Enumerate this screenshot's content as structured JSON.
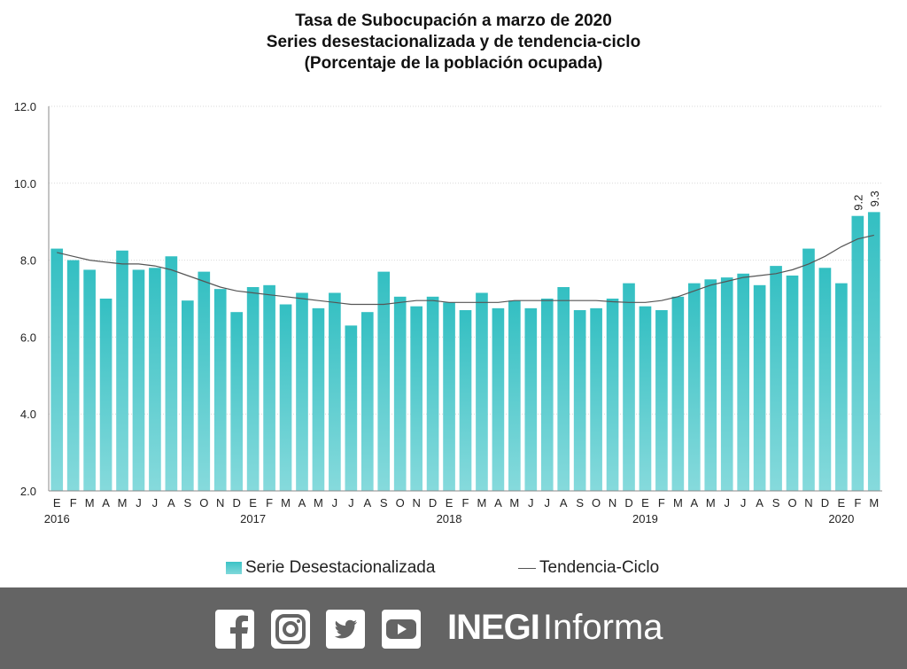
{
  "chart_data": {
    "type": "bar",
    "title": "Tasa de Subocupación a marzo de 2020",
    "subtitle": "Series desestacionalizada y de tendencia-ciclo",
    "subtitle2": "(Porcentaje de la población ocupada)",
    "ylim": [
      2.0,
      12.0
    ],
    "yticks": [
      "2.0",
      "4.0",
      "6.0",
      "8.0",
      "10.0",
      "12.0"
    ],
    "grid": true,
    "legend_placement": "bottom",
    "bar_color": "#3cc3c6",
    "line_color": "#555555",
    "categories": [
      "E",
      "F",
      "M",
      "A",
      "M",
      "J",
      "J",
      "A",
      "S",
      "O",
      "N",
      "D",
      "E",
      "F",
      "M",
      "A",
      "M",
      "J",
      "J",
      "A",
      "S",
      "O",
      "N",
      "D",
      "E",
      "F",
      "M",
      "A",
      "M",
      "J",
      "J",
      "A",
      "S",
      "O",
      "N",
      "D",
      "E",
      "F",
      "M",
      "A",
      "M",
      "J",
      "J",
      "A",
      "S",
      "O",
      "N",
      "D",
      "E",
      "F",
      "M"
    ],
    "years": [
      {
        "label": "2016",
        "index": 0
      },
      {
        "label": "2017",
        "index": 12
      },
      {
        "label": "2018",
        "index": 24
      },
      {
        "label": "2019",
        "index": 36
      },
      {
        "label": "2020",
        "index": 48
      }
    ],
    "series": [
      {
        "name": "Serie Desestacionalizada",
        "type": "bar",
        "values": [
          8.3,
          8.0,
          7.75,
          7.0,
          8.25,
          7.75,
          7.8,
          8.1,
          6.95,
          7.7,
          7.25,
          6.65,
          7.3,
          7.35,
          6.85,
          7.15,
          6.75,
          7.15,
          6.3,
          6.65,
          7.7,
          7.05,
          6.8,
          7.05,
          6.9,
          6.7,
          7.15,
          6.75,
          6.95,
          6.75,
          7.0,
          7.3,
          6.7,
          6.75,
          7.0,
          7.4,
          6.8,
          6.7,
          7.05,
          7.4,
          7.5,
          7.55,
          7.65,
          7.35,
          7.85,
          7.6,
          8.3,
          7.8,
          7.4,
          9.15,
          9.25
        ]
      },
      {
        "name": "Tendencia-Ciclo",
        "type": "line",
        "values": [
          8.2,
          8.1,
          8.0,
          7.95,
          7.9,
          7.9,
          7.85,
          7.75,
          7.6,
          7.45,
          7.3,
          7.2,
          7.15,
          7.1,
          7.05,
          7.0,
          6.95,
          6.9,
          6.85,
          6.85,
          6.85,
          6.9,
          6.95,
          6.95,
          6.9,
          6.9,
          6.9,
          6.9,
          6.95,
          6.95,
          6.95,
          6.95,
          6.95,
          6.95,
          6.92,
          6.9,
          6.9,
          6.95,
          7.05,
          7.2,
          7.35,
          7.45,
          7.55,
          7.6,
          7.65,
          7.75,
          7.9,
          8.1,
          8.35,
          8.55,
          8.65
        ]
      }
    ],
    "data_labels": [
      {
        "index": 49,
        "text": "9.2"
      },
      {
        "index": 50,
        "text": "9.3"
      }
    ]
  },
  "legend": {
    "bar_label": "Serie Desestacionalizada",
    "line_label": "Tendencia-Ciclo"
  },
  "footer": {
    "brand_bold": "INEGI",
    "brand_regular": "Informa",
    "icons": [
      "facebook-icon",
      "instagram-icon",
      "twitter-icon",
      "youtube-icon"
    ]
  }
}
